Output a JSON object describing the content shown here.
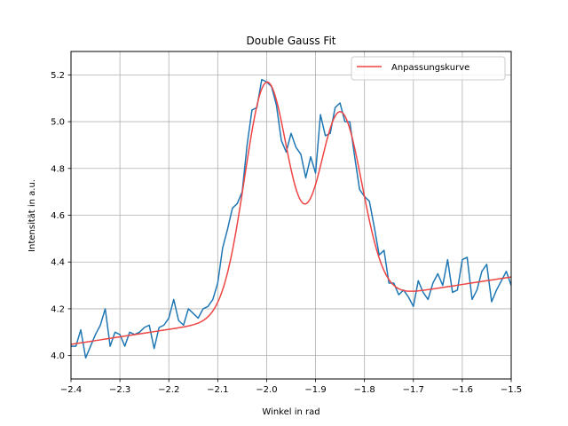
{
  "chart_data": {
    "type": "line",
    "title": "Double Gauss Fit",
    "xlabel": "Winkel in rad",
    "ylabel": "Intensität in a.u.",
    "xlim": [
      -2.4,
      -1.5
    ],
    "ylim": [
      3.9,
      5.3
    ],
    "x_ticks": [
      -2.4,
      -2.3,
      -2.2,
      -2.1,
      -2.0,
      -1.9,
      -1.8,
      -1.7,
      -1.6,
      -1.5
    ],
    "x_tick_labels": [
      "−2.4",
      "−2.3",
      "−2.2",
      "−2.1",
      "−2.0",
      "−1.9",
      "−1.8",
      "−1.7",
      "−1.6",
      "−1.5"
    ],
    "y_ticks": [
      4.0,
      4.2,
      4.4,
      4.6,
      4.8,
      5.0,
      5.2
    ],
    "y_tick_labels": [
      "4.0",
      "4.2",
      "4.4",
      "4.6",
      "4.8",
      "5.0",
      "5.2"
    ],
    "grid": true,
    "legend_position": "top-right",
    "series": [
      {
        "color": "#1f77b4",
        "x": [
          -2.4,
          -2.39,
          -2.38,
          -2.37,
          -2.36,
          -2.35,
          -2.34,
          -2.33,
          -2.32,
          -2.31,
          -2.3,
          -2.29,
          -2.28,
          -2.27,
          -2.26,
          -2.25,
          -2.24,
          -2.23,
          -2.22,
          -2.21,
          -2.2,
          -2.19,
          -2.18,
          -2.17,
          -2.16,
          -2.15,
          -2.14,
          -2.13,
          -2.12,
          -2.11,
          -2.1,
          -2.09,
          -2.08,
          -2.07,
          -2.06,
          -2.05,
          -2.04,
          -2.03,
          -2.02,
          -2.01,
          -2.0,
          -1.99,
          -1.98,
          -1.97,
          -1.96,
          -1.95,
          -1.94,
          -1.93,
          -1.92,
          -1.91,
          -1.9,
          -1.89,
          -1.88,
          -1.87,
          -1.86,
          -1.85,
          -1.84,
          -1.83,
          -1.82,
          -1.81,
          -1.8,
          -1.79,
          -1.78,
          -1.77,
          -1.76,
          -1.75,
          -1.74,
          -1.73,
          -1.72,
          -1.71,
          -1.7,
          -1.69,
          -1.68,
          -1.67,
          -1.66,
          -1.65,
          -1.64,
          -1.63,
          -1.62,
          -1.61,
          -1.6,
          -1.59,
          -1.58,
          -1.57,
          -1.56,
          -1.55,
          -1.54,
          -1.53,
          -1.52,
          -1.51,
          -1.5
        ],
        "values": [
          4.04,
          4.04,
          4.11,
          3.99,
          4.04,
          4.09,
          4.13,
          4.2,
          4.04,
          4.1,
          4.09,
          4.04,
          4.1,
          4.09,
          4.1,
          4.12,
          4.13,
          4.03,
          4.12,
          4.13,
          4.16,
          4.24,
          4.15,
          4.13,
          4.2,
          4.18,
          4.16,
          4.2,
          4.21,
          4.24,
          4.31,
          4.46,
          4.54,
          4.63,
          4.65,
          4.7,
          4.9,
          5.05,
          5.06,
          5.18,
          5.17,
          5.15,
          5.07,
          4.92,
          4.87,
          4.95,
          4.89,
          4.86,
          4.76,
          4.85,
          4.78,
          5.03,
          4.94,
          4.95,
          5.06,
          5.08,
          5.0,
          5.0,
          4.85,
          4.71,
          4.68,
          4.66,
          4.55,
          4.43,
          4.45,
          4.31,
          4.31,
          4.26,
          4.28,
          4.25,
          4.21,
          4.32,
          4.27,
          4.24,
          4.31,
          4.35,
          4.3,
          4.41,
          4.27,
          4.28,
          4.41,
          4.42,
          4.24,
          4.28,
          4.36,
          4.39,
          4.23,
          4.28,
          4.32,
          4.36,
          4.3
        ]
      },
      {
        "name": "Anpassungskurve",
        "color": "#ee4444",
        "model": {
          "baseline_a": 4.048,
          "baseline_slope": 0.32,
          "baseline_x0": -2.4,
          "peaks": [
            {
              "amplitude": 0.99,
              "center": -2.0,
              "sigma": 0.045
            },
            {
              "amplitude": 0.815,
              "center": -1.85,
              "sigma": 0.045
            }
          ]
        }
      }
    ]
  }
}
